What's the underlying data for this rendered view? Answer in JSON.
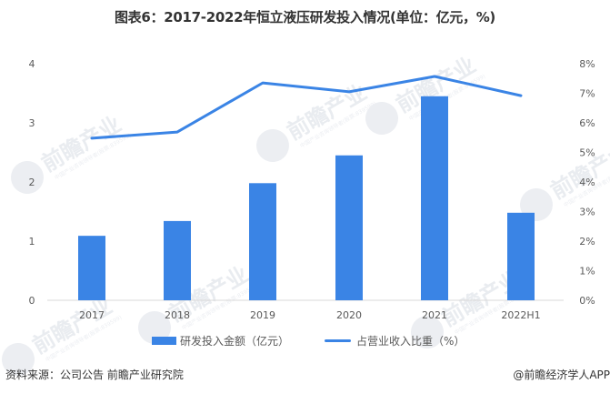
{
  "title": "图表6：2017-2022年恒立液压研发投入情况(单位：亿元，%)",
  "colors": {
    "bar": "#3A84E5",
    "line": "#3A84E5",
    "axis_line": "#d9d9d9",
    "tick_text": "#595959"
  },
  "legend": {
    "bar_label": "研发投入金额（亿元）",
    "line_label": "占营业收入比重（%）"
  },
  "axes": {
    "left_ticks": [
      "0",
      "1",
      "2",
      "3",
      "4"
    ],
    "right_ticks": [
      "0%",
      "1%",
      "2%",
      "3%",
      "4%",
      "5%",
      "6%",
      "7%",
      "8%"
    ],
    "x_ticks": [
      "2017",
      "2018",
      "2019",
      "2020",
      "2021",
      "2022H1"
    ]
  },
  "footer": {
    "source": "资料来源：公司公告 前瞻产业研究院",
    "credit": "@前瞻经济学人APP"
  },
  "watermark": {
    "text": "前瞻产业研究院",
    "subtext": "中国产业咨询领导者(股票:839599)"
  },
  "chart_data": {
    "type": "bar",
    "title": "图表6：2017-2022年恒立液压研发投入情况(单位：亿元，%)",
    "categories": [
      "2017",
      "2018",
      "2019",
      "2020",
      "2021",
      "2022H1"
    ],
    "series": [
      {
        "name": "研发投入金额（亿元）",
        "type": "bar",
        "axis": "left",
        "values": [
          1.09,
          1.34,
          1.98,
          2.45,
          3.45,
          1.48
        ]
      },
      {
        "name": "占营业收入比重（%）",
        "type": "line",
        "axis": "right",
        "values": [
          5.48,
          5.69,
          7.35,
          7.05,
          7.57,
          6.92
        ]
      }
    ],
    "xlabel": "",
    "ylabel": "亿元",
    "ylabel_right": "%",
    "ylim": [
      0,
      4
    ],
    "ylim_right": [
      0,
      8
    ],
    "grid": false,
    "legend_position": "bottom"
  }
}
